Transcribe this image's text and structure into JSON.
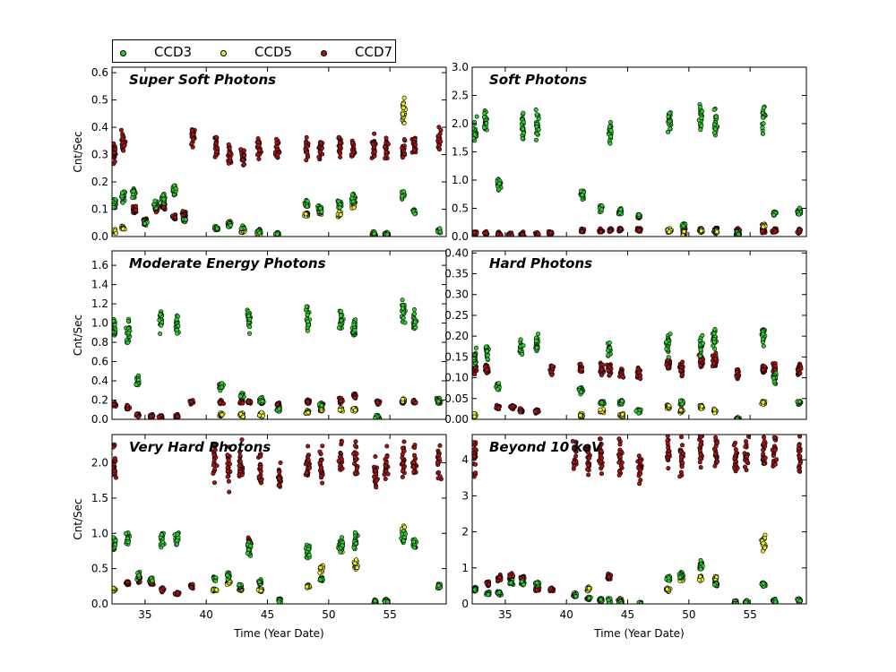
{
  "chart_data": {
    "type": "scatter",
    "legend": {
      "placement": "top-left",
      "entries": [
        {
          "name": "CCD3",
          "color": "#2ecc2e"
        },
        {
          "name": "CCD5",
          "color": "#e8e830"
        },
        {
          "name": "CCD7",
          "color": "#a31515"
        }
      ]
    },
    "x_axis": {
      "label": "Time (Year Date)",
      "range": [
        32.3,
        59.6
      ],
      "ticks": [
        35,
        40,
        45,
        50,
        55
      ],
      "tick_labels": [
        "35",
        "40",
        "45",
        "50",
        "55"
      ]
    },
    "y_label": "Cnt/Sec",
    "grid": false,
    "panels": [
      {
        "title": "Super Soft Photons",
        "ylim": [
          0,
          0.62
        ],
        "ticks": [
          0.0,
          0.1,
          0.2,
          0.3,
          0.4,
          0.5,
          0.6
        ],
        "tick_labels": [
          "0.0",
          "0.1",
          "0.2",
          "0.3",
          "0.4",
          "0.5",
          "0.6"
        ],
        "clusters": [
          {
            "x": 32.5,
            "CCD3": 0.12,
            "CCD5": 0.02,
            "CCD7": 0.3
          },
          {
            "x": 33.2,
            "CCD3": 0.15,
            "CCD5": 0.03,
            "CCD7": 0.35
          },
          {
            "x": 34.1,
            "CCD3": 0.16,
            "CCD7": 0.1
          },
          {
            "x": 35.0,
            "CCD3": 0.05,
            "CCD7": 0.06
          },
          {
            "x": 35.9,
            "CCD3": 0.12,
            "CCD7": 0.1
          },
          {
            "x": 36.5,
            "CCD3": 0.14,
            "CCD7": 0.11
          },
          {
            "x": 37.4,
            "CCD3": 0.17,
            "CCD7": 0.07
          },
          {
            "x": 38.2,
            "CCD3": 0.06,
            "CCD7": 0.08
          },
          {
            "x": 38.9,
            "CCD7": 0.36
          },
          {
            "x": 40.8,
            "CCD3": 0.03,
            "CCD5": 0.03,
            "CCD7": 0.32
          },
          {
            "x": 41.9,
            "CCD3": 0.04,
            "CCD5": 0.05,
            "CCD7": 0.3
          },
          {
            "x": 43.0,
            "CCD3": 0.03,
            "CCD5": 0.02,
            "CCD7": 0.29
          },
          {
            "x": 44.3,
            "CCD3": 0.02,
            "CCD5": 0.01,
            "CCD7": 0.33
          },
          {
            "x": 45.8,
            "CCD3": 0.01,
            "CCD7": 0.32
          },
          {
            "x": 48.2,
            "CCD3": 0.12,
            "CCD5": 0.08,
            "CCD7": 0.33
          },
          {
            "x": 49.3,
            "CCD3": 0.1,
            "CCD5": 0.09,
            "CCD7": 0.32
          },
          {
            "x": 50.9,
            "CCD3": 0.12,
            "CCD5": 0.08,
            "CCD7": 0.33
          },
          {
            "x": 52.0,
            "CCD3": 0.14,
            "CCD5": 0.12,
            "CCD7": 0.32
          },
          {
            "x": 53.7,
            "CCD3": 0.01,
            "CCD5": 0.01,
            "CCD7": 0.33
          },
          {
            "x": 54.7,
            "CCD3": 0.01,
            "CCD5": 0.01,
            "CCD7": 0.32
          },
          {
            "x": 56.1,
            "CCD3": 0.15,
            "CCD5": 0.46,
            "CCD7": 0.33
          },
          {
            "x": 57.0,
            "CCD3": 0.09,
            "CCD7": 0.34
          },
          {
            "x": 59.0,
            "CCD3": 0.02,
            "CCD7": 0.35
          }
        ]
      },
      {
        "title": "Soft Photons",
        "ylim": [
          0,
          3.0
        ],
        "ticks": [
          0.0,
          0.5,
          1.0,
          1.5,
          2.0,
          2.5,
          3.0
        ],
        "tick_labels": [
          "0.0",
          "0.5",
          "1.0",
          "1.5",
          "2.0",
          "2.5",
          "3.0"
        ],
        "clusters": [
          {
            "x": 32.5,
            "CCD3": 1.9,
            "CCD7": 0.06
          },
          {
            "x": 33.4,
            "CCD3": 2.0,
            "CCD7": 0.05
          },
          {
            "x": 34.5,
            "CCD3": 0.95,
            "CCD7": 0.04
          },
          {
            "x": 35.4,
            "CCD7": 0.04
          },
          {
            "x": 36.4,
            "CCD3": 2.0,
            "CCD7": 0.04
          },
          {
            "x": 37.6,
            "CCD3": 2.0,
            "CCD7": 0.04
          },
          {
            "x": 38.7,
            "CCD7": 0.06
          },
          {
            "x": 41.3,
            "CCD3": 0.75,
            "CCD7": 0.1
          },
          {
            "x": 42.8,
            "CCD3": 0.5,
            "CCD7": 0.1
          },
          {
            "x": 43.6,
            "CCD3": 1.85,
            "CCD7": 0.12
          },
          {
            "x": 44.4,
            "CCD3": 0.45,
            "CCD7": 0.12
          },
          {
            "x": 45.9,
            "CCD3": 0.35,
            "CCD7": 0.12
          },
          {
            "x": 48.4,
            "CCD3": 2.05,
            "CCD5": 0.1,
            "CCD7": 0.12
          },
          {
            "x": 49.6,
            "CCD3": 0.2,
            "CCD5": 0.05,
            "CCD7": 0.1
          },
          {
            "x": 51.0,
            "CCD3": 2.1,
            "CCD5": 0.1,
            "CCD7": 0.12
          },
          {
            "x": 52.2,
            "CCD3": 2.0,
            "CCD5": 0.08,
            "CCD7": 0.12
          },
          {
            "x": 54.0,
            "CCD3": 0.05,
            "CCD5": 0.02,
            "CCD7": 0.1
          },
          {
            "x": 56.1,
            "CCD3": 2.1,
            "CCD5": 0.2,
            "CCD7": 0.1
          },
          {
            "x": 57.0,
            "CCD3": 0.4,
            "CCD7": 0.1
          },
          {
            "x": 59.0,
            "CCD3": 0.45,
            "CCD7": 0.1
          }
        ]
      },
      {
        "title": "Moderate Energy Photons",
        "ylim": [
          0,
          1.75
        ],
        "ticks": [
          0.0,
          0.2,
          0.4,
          0.6,
          0.8,
          1.0,
          1.2,
          1.4,
          1.6
        ],
        "tick_labels": [
          "0.0",
          "0.2",
          "0.4",
          "0.6",
          "0.8",
          "1.0",
          "1.2",
          "1.4",
          "1.6"
        ],
        "clusters": [
          {
            "x": 32.5,
            "CCD3": 0.95,
            "CCD7": 0.15
          },
          {
            "x": 33.6,
            "CCD3": 0.9,
            "CCD7": 0.12
          },
          {
            "x": 34.4,
            "CCD3": 0.4,
            "CCD7": 0.05
          },
          {
            "x": 35.5,
            "CCD7": 0.03
          },
          {
            "x": 36.3,
            "CCD3": 1.05,
            "CCD7": 0.03
          },
          {
            "x": 37.6,
            "CCD3": 1.0,
            "CCD7": 0.03
          },
          {
            "x": 38.8,
            "CCD7": 0.18
          },
          {
            "x": 41.2,
            "CCD3": 0.35,
            "CCD5": 0.05,
            "CCD7": 0.18
          },
          {
            "x": 42.9,
            "CCD3": 0.25,
            "CCD5": 0.05,
            "CCD7": 0.18
          },
          {
            "x": 43.5,
            "CCD3": 1.05,
            "CCD7": 0.18
          },
          {
            "x": 44.5,
            "CCD3": 0.2,
            "CCD5": 0.05,
            "CCD7": 0.18
          },
          {
            "x": 45.9,
            "CCD3": 0.1,
            "CCD7": 0.15
          },
          {
            "x": 48.3,
            "CCD3": 1.05,
            "CCD5": 0.08,
            "CCD7": 0.18
          },
          {
            "x": 49.4,
            "CCD3": 0.15,
            "CCD5": 0.1,
            "CCD7": 0.15
          },
          {
            "x": 51.0,
            "CCD3": 1.0,
            "CCD5": 0.1,
            "CCD7": 0.2
          },
          {
            "x": 52.1,
            "CCD3": 0.95,
            "CCD5": 0.1,
            "CCD7": 0.25
          },
          {
            "x": 54.0,
            "CCD3": 0.02,
            "CCD5": 0.02,
            "CCD7": 0.18
          },
          {
            "x": 56.1,
            "CCD3": 1.1,
            "CCD5": 0.2,
            "CCD7": 0.18
          },
          {
            "x": 57.0,
            "CCD3": 1.0,
            "CCD7": 0.18
          },
          {
            "x": 59.0,
            "CCD3": 0.2,
            "CCD7": 0.18
          }
        ]
      },
      {
        "title": "Hard Photons",
        "ylim": [
          0,
          0.405
        ],
        "ticks": [
          0.0,
          0.05,
          0.1,
          0.15,
          0.2,
          0.25,
          0.3,
          0.35,
          0.4
        ],
        "tick_labels": [
          "0.00",
          "0.05",
          "0.10",
          "0.15",
          "0.20",
          "0.25",
          "0.30",
          "0.35",
          "0.40"
        ],
        "clusters": [
          {
            "x": 32.5,
            "CCD3": 0.15,
            "CCD5": 0.01,
            "CCD7": 0.12
          },
          {
            "x": 33.5,
            "CCD3": 0.16,
            "CCD7": 0.12
          },
          {
            "x": 34.4,
            "CCD3": 0.08,
            "CCD7": 0.03
          },
          {
            "x": 35.6,
            "CCD7": 0.03
          },
          {
            "x": 36.3,
            "CCD3": 0.17,
            "CCD7": 0.02
          },
          {
            "x": 37.6,
            "CCD3": 0.18,
            "CCD7": 0.02
          },
          {
            "x": 38.8,
            "CCD7": 0.12
          },
          {
            "x": 41.2,
            "CCD3": 0.07,
            "CCD5": 0.01,
            "CCD7": 0.12
          },
          {
            "x": 42.9,
            "CCD3": 0.04,
            "CCD5": 0.02,
            "CCD7": 0.12
          },
          {
            "x": 43.5,
            "CCD3": 0.17,
            "CCD7": 0.12
          },
          {
            "x": 44.5,
            "CCD3": 0.04,
            "CCD5": 0.01,
            "CCD7": 0.11
          },
          {
            "x": 45.9,
            "CCD3": 0.02,
            "CCD7": 0.11
          },
          {
            "x": 48.3,
            "CCD3": 0.18,
            "CCD5": 0.03,
            "CCD7": 0.13
          },
          {
            "x": 49.4,
            "CCD3": 0.04,
            "CCD5": 0.02,
            "CCD7": 0.12
          },
          {
            "x": 51.0,
            "CCD3": 0.18,
            "CCD5": 0.03,
            "CCD7": 0.14
          },
          {
            "x": 52.1,
            "CCD3": 0.2,
            "CCD5": 0.02,
            "CCD7": 0.14
          },
          {
            "x": 54.0,
            "CCD3": 0.0,
            "CCD5": 0.0,
            "CCD7": 0.11
          },
          {
            "x": 56.1,
            "CCD3": 0.2,
            "CCD5": 0.04,
            "CCD7": 0.12
          },
          {
            "x": 57.0,
            "CCD3": 0.1,
            "CCD7": 0.12
          },
          {
            "x": 59.0,
            "CCD3": 0.04,
            "CCD7": 0.12
          }
        ]
      },
      {
        "title": "Very Hard Photons",
        "ylim": [
          0,
          2.4
        ],
        "ticks": [
          0.0,
          0.5,
          1.0,
          1.5,
          2.0
        ],
        "tick_labels": [
          "0.0",
          "0.5",
          "1.0",
          "1.5",
          "2.0"
        ],
        "clusters": [
          {
            "x": 32.5,
            "CCD3": 0.85,
            "CCD5": 0.2,
            "CCD7": 2.0
          },
          {
            "x": 33.6,
            "CCD3": 0.9,
            "CCD7": 0.3
          },
          {
            "x": 34.5,
            "CCD3": 0.4,
            "CCD7": 0.35
          },
          {
            "x": 35.5,
            "CCD3": 0.35,
            "CCD7": 0.3
          },
          {
            "x": 36.4,
            "CCD3": 0.95,
            "CCD7": 0.2
          },
          {
            "x": 37.6,
            "CCD3": 0.95,
            "CCD7": 0.15
          },
          {
            "x": 38.8,
            "CCD7": 0.25
          },
          {
            "x": 40.7,
            "CCD3": 0.35,
            "CCD5": 0.2,
            "CCD7": 2.0
          },
          {
            "x": 41.8,
            "CCD3": 0.4,
            "CCD5": 0.3,
            "CCD7": 1.9
          },
          {
            "x": 42.8,
            "CCD3": 0.25,
            "CCD5": 0.2,
            "CCD7": 2.0
          },
          {
            "x": 43.5,
            "CCD3": 0.8,
            "CCD7": 0.85
          },
          {
            "x": 44.4,
            "CCD3": 0.3,
            "CCD5": 0.2,
            "CCD7": 1.95
          },
          {
            "x": 46.0,
            "CCD3": 0.05,
            "CCD7": 1.75
          },
          {
            "x": 48.3,
            "CCD3": 0.75,
            "CCD5": 0.25,
            "CCD7": 2.0
          },
          {
            "x": 49.4,
            "CCD3": 0.35,
            "CCD5": 0.5,
            "CCD7": 1.95
          },
          {
            "x": 51.0,
            "CCD3": 0.85,
            "CCD5": 0.8,
            "CCD7": 2.1
          },
          {
            "x": 52.2,
            "CCD3": 0.9,
            "CCD5": 0.55,
            "CCD7": 2.05
          },
          {
            "x": 53.8,
            "CCD3": 0.02,
            "CCD5": 0.02,
            "CCD7": 1.85
          },
          {
            "x": 54.7,
            "CCD3": 0.05,
            "CCD7": 2.0
          },
          {
            "x": 56.1,
            "CCD3": 0.95,
            "CCD5": 1.0,
            "CCD7": 2.05
          },
          {
            "x": 57.0,
            "CCD3": 0.85,
            "CCD7": 2.0
          },
          {
            "x": 59.0,
            "CCD3": 0.25,
            "CCD7": 2.05
          }
        ]
      },
      {
        "title": "Beyond 10 keV",
        "ylim": [
          0,
          4.7
        ],
        "ticks": [
          0,
          1,
          2,
          3,
          4
        ],
        "tick_labels": [
          "0",
          "1",
          "2",
          "3",
          "4"
        ],
        "clusters": [
          {
            "x": 32.5,
            "CCD3": 0.4,
            "CCD5": 0.4,
            "CCD7": 4.1
          },
          {
            "x": 33.6,
            "CCD3": 0.3,
            "CCD7": 0.55
          },
          {
            "x": 34.5,
            "CCD3": 0.3,
            "CCD7": 0.7
          },
          {
            "x": 35.5,
            "CCD3": 0.6,
            "CCD7": 0.75
          },
          {
            "x": 36.4,
            "CCD3": 0.6,
            "CCD7": 0.7
          },
          {
            "x": 37.6,
            "CCD3": 0.55,
            "CCD7": 0.4
          },
          {
            "x": 38.8,
            "CCD7": 0.4
          },
          {
            "x": 40.7,
            "CCD3": 0.25,
            "CCD5": 0.25,
            "CCD7": 4.2
          },
          {
            "x": 41.8,
            "CCD3": 0.15,
            "CCD5": 0.4,
            "CCD7": 4.0
          },
          {
            "x": 42.8,
            "CCD3": 0.1,
            "CCD5": 0.1,
            "CCD7": 4.1
          },
          {
            "x": 43.5,
            "CCD3": 0.1,
            "CCD7": 0.75
          },
          {
            "x": 44.4,
            "CCD3": 0.05,
            "CCD5": 0.1,
            "CCD7": 4.05
          },
          {
            "x": 46.0,
            "CCD3": 0.02,
            "CCD7": 3.85
          },
          {
            "x": 48.3,
            "CCD3": 0.7,
            "CCD5": 0.4,
            "CCD7": 4.25
          },
          {
            "x": 49.4,
            "CCD3": 0.8,
            "CCD5": 0.7,
            "CCD7": 4.1
          },
          {
            "x": 51.0,
            "CCD3": 1.05,
            "CCD5": 0.7,
            "CCD7": 4.3
          },
          {
            "x": 52.2,
            "CCD3": 0.55,
            "CCD5": 0.7,
            "CCD7": 4.3
          },
          {
            "x": 53.8,
            "CCD3": 0.02,
            "CCD5": 0.02,
            "CCD7": 3.95
          },
          {
            "x": 54.7,
            "CCD3": 0.05,
            "CCD7": 4.15
          },
          {
            "x": 56.1,
            "CCD3": 0.55,
            "CCD5": 1.7,
            "CCD7": 4.3
          },
          {
            "x": 57.0,
            "CCD3": 0.1,
            "CCD7": 4.25
          },
          {
            "x": 59.0,
            "CCD3": 0.1,
            "CCD7": 4.25
          }
        ]
      }
    ]
  }
}
